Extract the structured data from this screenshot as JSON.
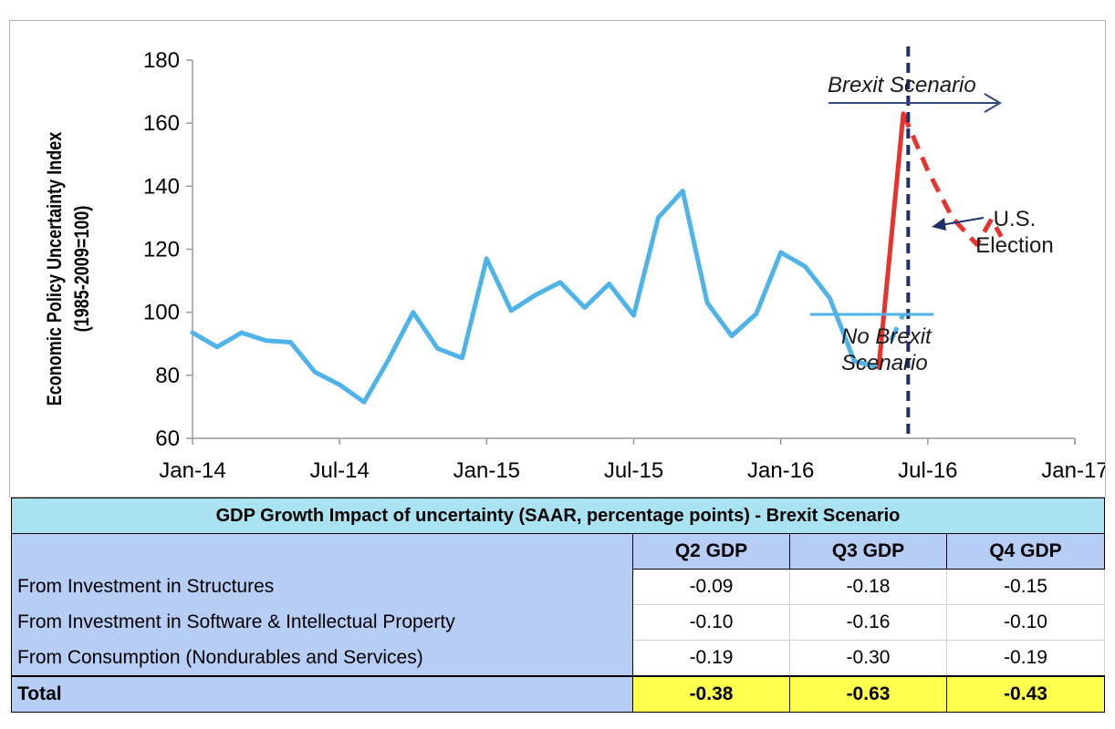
{
  "chart_data": {
    "type": "line",
    "ylabel_line1": "Economic Policy Uncertainty Index",
    "ylabel_line2": "(1985-2009=100)",
    "ylim": [
      60,
      180
    ],
    "yticks": [
      "60",
      "80",
      "100",
      "120",
      "140",
      "160",
      "180"
    ],
    "xticks": [
      "Jan-14",
      "Jul-14",
      "Jan-15",
      "Jul-15",
      "Jan-16",
      "Jul-16",
      "Jan-17"
    ],
    "series": [
      {
        "name": "Economic Policy Uncertainty Index",
        "style": "solid",
        "color": "#4eb3e8",
        "x": [
          0,
          1,
          2,
          3,
          4,
          5,
          6,
          7,
          8,
          9,
          10,
          11,
          12,
          13,
          14,
          15,
          16,
          17,
          18,
          19,
          20,
          21,
          22,
          23,
          24,
          25,
          26,
          27,
          28
        ],
        "values": [
          93.5,
          89,
          93.5,
          91,
          90.5,
          81,
          77,
          71.5,
          85,
          100,
          88.5,
          85.5,
          117,
          100.5,
          105.5,
          109.5,
          101.5,
          109,
          99,
          130,
          138.5,
          103,
          92.5,
          99.5,
          119,
          114.5,
          104.5,
          84.5,
          82.5
        ]
      },
      {
        "name": "Brexit shock",
        "style": "solid",
        "color": "#e8322d",
        "x": [
          28,
          29
        ],
        "values": [
          82.5,
          163
        ]
      },
      {
        "name": "Brexit Scenario",
        "style": "dashed",
        "color": "#e8322d",
        "x": [
          29,
          30,
          31,
          32,
          32.6,
          33
        ],
        "values": [
          163,
          145,
          130,
          121.5,
          129.5,
          124
        ]
      },
      {
        "name": "No Brexit Scenario",
        "style": "dashed",
        "color": "#4eb3e8",
        "x": [
          28.5,
          29
        ],
        "values": [
          91,
          99.5
        ]
      }
    ],
    "brexit_marker_x": 29.2,
    "annotations": {
      "brexit": "Brexit Scenario",
      "no_brexit_line1": "No Brexit",
      "no_brexit_line2": "Scenario",
      "election_line1": "U.S.",
      "election_line2": "Election"
    },
    "colors": {
      "uncertainty_line": "#4eb3e8",
      "brexit_line": "#e8322d",
      "marker_line": "#1f2f6b",
      "arrow": "#33487e"
    }
  },
  "table": {
    "title": "GDP Growth Impact of uncertainty (SAAR, percentage points) - Brexit Scenario",
    "columns": [
      "Q2 GDP",
      "Q3 GDP",
      "Q4 GDP"
    ],
    "rows": [
      {
        "label": "From Investment in Structures",
        "values": [
          "-0.09",
          "-0.18",
          "-0.15"
        ]
      },
      {
        "label": "From Investment in Software & Intellectual Property",
        "values": [
          "-0.10",
          "-0.16",
          "-0.10"
        ]
      },
      {
        "label": "From Consumption (Nondurables and Services)",
        "values": [
          "-0.19",
          "-0.30",
          "-0.19"
        ]
      }
    ],
    "total": {
      "label": "Total",
      "values": [
        "-0.38",
        "-0.63",
        "-0.43"
      ]
    }
  }
}
